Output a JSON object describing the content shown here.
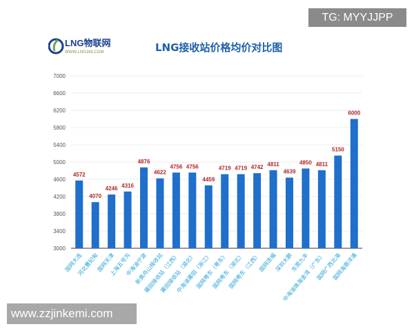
{
  "watermarks": {
    "top": "TG: MYYJJPP",
    "bottom": "www.zzjinkemi.com"
  },
  "logo": {
    "name": "LNG物联网",
    "site": "WWW.LNG168.COM"
  },
  "chart_data": {
    "type": "bar",
    "title": "LNG接收站价格均价对比图",
    "categories": [
      "国网大连",
      "河北曹妃甸",
      "国网天津",
      "上海五号沟",
      "中海油宁波",
      "新奥舟山接收站",
      "莆田接收站（江西）",
      "莆田接收站（湖北）",
      "中海油莆田（浙江）",
      "国网粤东（粤东）",
      "国网粤东（湖北）",
      "国网粤东（江西）",
      "国网迭福",
      "深圳大鹏",
      "东莞九丰",
      "中海油珠海金湾（广东）",
      "国网广西北海",
      "国网海南洋浦"
    ],
    "values": [
      4572,
      4070,
      4246,
      4316,
      4876,
      4622,
      4756,
      4756,
      4459,
      4719,
      4719,
      4742,
      4811,
      4639,
      4850,
      4811,
      5150,
      6000
    ],
    "ylim": [
      3000,
      7000
    ],
    "yticks": [
      "3000",
      "3400",
      "3800",
      "4200",
      "4600",
      "5000",
      "5400",
      "5800",
      "6200",
      "6600",
      "7000"
    ],
    "colors": {
      "bar": "#1f6fcc",
      "label": "#b0262a",
      "tick": "#29a3d6"
    }
  }
}
